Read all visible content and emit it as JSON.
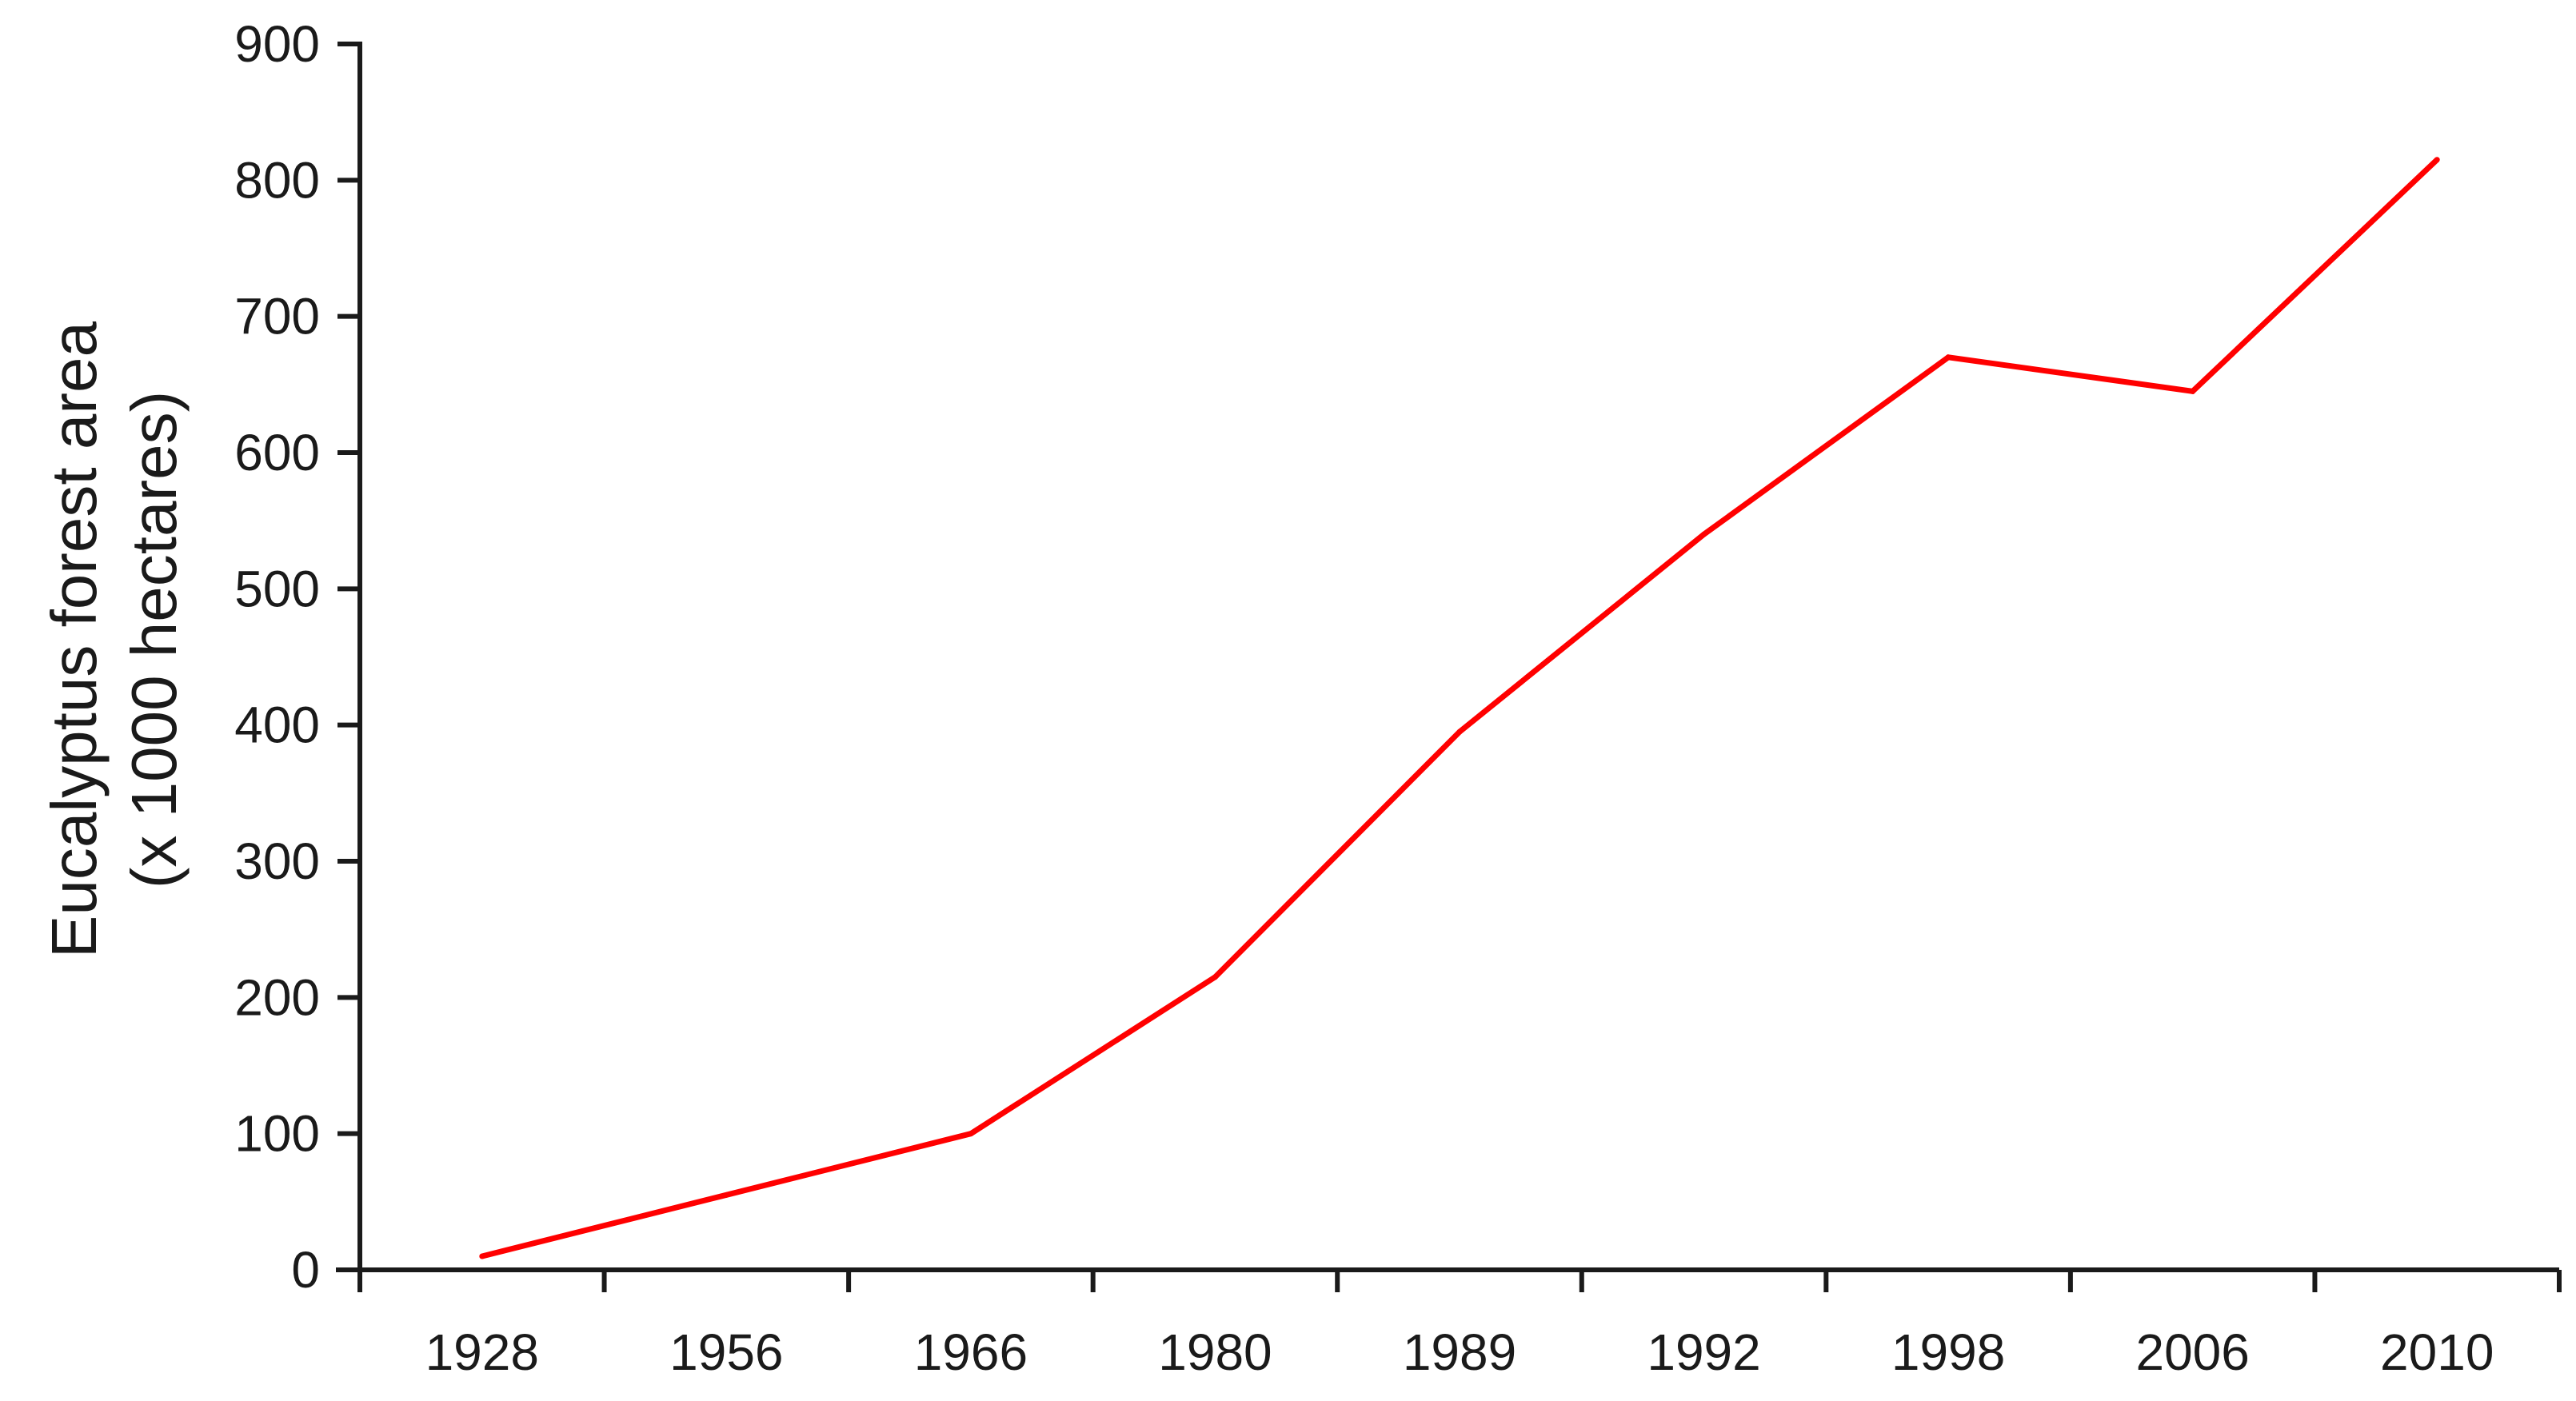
{
  "chart_data": {
    "type": "line",
    "title": "",
    "xlabel": "",
    "ylabel_lines": [
      "Eucalyptus forest area",
      "(x 1000 hectares)"
    ],
    "categories": [
      "1928",
      "1956",
      "1966",
      "1980",
      "1989",
      "1992",
      "1998",
      "2006",
      "2010"
    ],
    "series": [
      {
        "values": [
          10,
          55,
          100,
          215,
          395,
          540,
          670,
          645,
          815
        ]
      }
    ],
    "ylim": [
      0,
      900
    ],
    "yticks": [
      "0",
      "100",
      "200",
      "300",
      "400",
      "500",
      "600",
      "700",
      "800",
      "900"
    ],
    "grid": false,
    "legend": "none",
    "colors": {
      "line": "#ff0000",
      "axis": "#1a1a1a"
    }
  }
}
